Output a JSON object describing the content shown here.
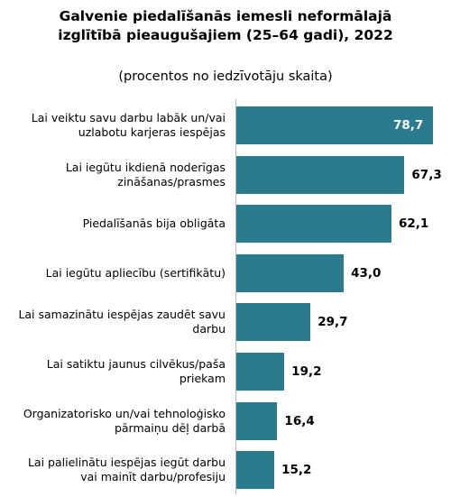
{
  "chart_data": {
    "type": "bar",
    "orientation": "horizontal",
    "title": "Galvenie piedalīšanās iemesli neformālajā izglītībā pieaugušajiem (25–64 gadi), 2022",
    "subtitle": "(procentos no iedzīvotāju skaita)",
    "categories": [
      "Lai veiktu savu darbu labāk un/vai uzlabotu karjeras iespējas",
      "Lai iegūtu ikdienā noderīgas zināšanas/prasmes",
      "Piedalīšanās bija obligāta",
      "Lai iegūtu apliecību (sertifikātu)",
      "Lai samazinātu iespējas zaudēt savu darbu",
      "Lai satiktu jaunus cilvēkus/paša priekam",
      "Organizatorisko un/vai tehnoloģisko pārmaiņu dēļ darbā",
      "Lai palielinātu iespējas iegūt darbu vai mainīt darbu/profesiju"
    ],
    "values": [
      78.7,
      67.3,
      62.1,
      43.0,
      29.7,
      19.2,
      16.4,
      15.2
    ],
    "value_labels": [
      "78,7",
      "67,3",
      "62,1",
      "43,0",
      "29,7",
      "19,2",
      "16,4",
      "15,2"
    ],
    "color": "#2b7b8e"
  }
}
